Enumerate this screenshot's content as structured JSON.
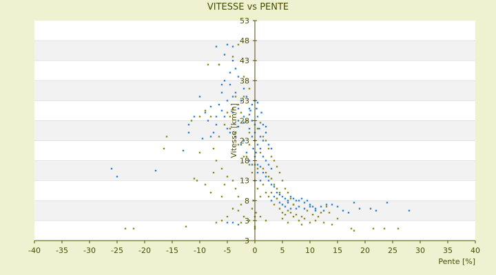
{
  "chart_data": {
    "type": "scatter",
    "title": "VITESSE vs PENTE",
    "xlabel": "Pente [%]",
    "ylabel": "Vitesse [km/h]",
    "xlim": [
      -40,
      40
    ],
    "ylim": [
      -2,
      53
    ],
    "x_ticks": [
      "-40",
      "-35",
      "-30",
      "-25",
      "-20",
      "-15",
      "-10",
      "-5",
      "0",
      "5",
      "10",
      "15",
      "20",
      "25",
      "30",
      "35",
      "40"
    ],
    "y_ticks": [
      "3",
      "3",
      "8",
      "13",
      "18",
      "23",
      "28",
      "33",
      "38",
      "43",
      "48",
      "53"
    ],
    "grid": "horizontal",
    "legend": "none",
    "colors": {
      "background": "#eef2d0",
      "plot": "#ffffff",
      "band": "#f2f2f2",
      "series_blue": "#2b7fd6",
      "series_olive": "#8a8a1a",
      "axis": "#4a4a00"
    },
    "series": [
      {
        "color": "blue",
        "points": [
          [
            -26,
            16
          ],
          [
            -25,
            14
          ],
          [
            -18,
            15.5
          ],
          [
            -13,
            20.5
          ],
          [
            -12,
            27
          ],
          [
            -10,
            34
          ],
          [
            -9,
            30
          ],
          [
            -8,
            31.5
          ],
          [
            -7,
            46.5
          ],
          [
            -6,
            35
          ],
          [
            -5,
            47
          ],
          [
            -4,
            43
          ],
          [
            -5.5,
            38
          ],
          [
            -4.5,
            37
          ],
          [
            -3.5,
            35
          ],
          [
            -3,
            31
          ],
          [
            -2.5,
            33
          ],
          [
            -2,
            29
          ],
          [
            -1.5,
            34
          ],
          [
            -1,
            31
          ],
          [
            -0.5,
            32
          ],
          [
            -0.5,
            28
          ],
          [
            0,
            27
          ],
          [
            0.3,
            31
          ],
          [
            0.5,
            29
          ],
          [
            0.8,
            26
          ],
          [
            1,
            24
          ],
          [
            1.2,
            30
          ],
          [
            1.5,
            23
          ],
          [
            2,
            25
          ],
          [
            2.5,
            22
          ],
          [
            3,
            21
          ],
          [
            0.5,
            22
          ],
          [
            -0.5,
            24
          ],
          [
            0,
            25
          ],
          [
            0.2,
            20
          ],
          [
            -0.3,
            21
          ],
          [
            1,
            21
          ],
          [
            -1,
            26
          ],
          [
            -2,
            23
          ],
          [
            -3,
            28
          ],
          [
            -4,
            30
          ],
          [
            -5.5,
            29
          ],
          [
            -6,
            30.5
          ],
          [
            -6.5,
            32
          ],
          [
            -7,
            27
          ],
          [
            -7.5,
            25
          ],
          [
            -8,
            24
          ],
          [
            -3.5,
            24
          ],
          [
            -2.5,
            22
          ],
          [
            -1.5,
            20
          ],
          [
            -1,
            18
          ],
          [
            0.5,
            17
          ],
          [
            1,
            16.5
          ],
          [
            1.5,
            15
          ],
          [
            2,
            14
          ],
          [
            2.5,
            13
          ],
          [
            3,
            12
          ],
          [
            3.5,
            11.5
          ],
          [
            4,
            10
          ],
          [
            4.5,
            9.5
          ],
          [
            5,
            9
          ],
          [
            5.5,
            8.5
          ],
          [
            6,
            8
          ],
          [
            6.5,
            9
          ],
          [
            7,
            8.5
          ],
          [
            7.5,
            8
          ],
          [
            8,
            8
          ],
          [
            8.5,
            8.5
          ],
          [
            9,
            7.5
          ],
          [
            9.5,
            8
          ],
          [
            10,
            7
          ],
          [
            10.5,
            6.5
          ],
          [
            11,
            6
          ],
          [
            12,
            6.5
          ],
          [
            12.5,
            5.5
          ],
          [
            13,
            7
          ],
          [
            14,
            7
          ],
          [
            15,
            6.5
          ],
          [
            16,
            5.5
          ],
          [
            17,
            5
          ],
          [
            18,
            7.5
          ],
          [
            19,
            6
          ],
          [
            21,
            6
          ],
          [
            22,
            5.5
          ],
          [
            24,
            7.5
          ],
          [
            28,
            5.5
          ],
          [
            3,
            8
          ],
          [
            4,
            8.5
          ],
          [
            5,
            7
          ],
          [
            5.5,
            6.5
          ],
          [
            6,
            7.5
          ],
          [
            7,
            7
          ],
          [
            8,
            6.5
          ],
          [
            3.5,
            9
          ],
          [
            4.5,
            7.5
          ],
          [
            6.5,
            6
          ],
          [
            7.5,
            6
          ],
          [
            9,
            6
          ],
          [
            10,
            6.5
          ],
          [
            11,
            5.5
          ],
          [
            2,
            18
          ],
          [
            2.5,
            17
          ],
          [
            3,
            16
          ],
          [
            1.5,
            19
          ],
          [
            0,
            19
          ],
          [
            -0.5,
            17
          ],
          [
            0.5,
            15
          ],
          [
            1,
            13
          ],
          [
            -5,
            26
          ],
          [
            -4.5,
            25
          ],
          [
            -3,
            26.5
          ],
          [
            -2,
            27.5
          ],
          [
            -1,
            29.5
          ],
          [
            0,
            33
          ],
          [
            0.5,
            32.5
          ],
          [
            -0.8,
            30.5
          ],
          [
            1.5,
            27
          ],
          [
            2,
            26.5
          ],
          [
            -5,
            33
          ],
          [
            -4,
            34
          ],
          [
            -6,
            37
          ],
          [
            -4.5,
            40
          ],
          [
            -3.5,
            41
          ],
          [
            -3,
            39
          ],
          [
            -2,
            36
          ],
          [
            -6.5,
            42
          ],
          [
            -5.5,
            44.5
          ],
          [
            -4,
            46.5
          ],
          [
            -7,
            29
          ],
          [
            -8.5,
            28
          ],
          [
            -9.5,
            23.5
          ],
          [
            -11,
            29
          ],
          [
            -12,
            25
          ],
          [
            -3,
            2
          ],
          [
            -4,
            2.5
          ],
          [
            -5,
            2.5
          ]
        ]
      },
      {
        "color": "olive",
        "points": [
          [
            -23.5,
            1
          ],
          [
            -22,
            1
          ],
          [
            -16,
            24
          ],
          [
            -16.5,
            21
          ],
          [
            -12.5,
            1.5
          ],
          [
            -11,
            13.5
          ],
          [
            -10.5,
            13
          ],
          [
            -10,
            29
          ],
          [
            -9,
            30.5
          ],
          [
            -8,
            29
          ],
          [
            -8.5,
            42
          ],
          [
            -6.5,
            42
          ],
          [
            -5,
            30
          ],
          [
            -4.5,
            26
          ],
          [
            -4,
            31
          ],
          [
            -3.5,
            25
          ],
          [
            -3,
            22
          ],
          [
            -2,
            19
          ],
          [
            -1.5,
            19
          ],
          [
            -1,
            22
          ],
          [
            -1,
            17
          ],
          [
            -0.5,
            15
          ],
          [
            0,
            13
          ],
          [
            0.5,
            11
          ],
          [
            1,
            9
          ],
          [
            1.5,
            12
          ],
          [
            2,
            10
          ],
          [
            2.5,
            9
          ],
          [
            3,
            10
          ],
          [
            3.5,
            7
          ],
          [
            4,
            8.5
          ],
          [
            4.5,
            6
          ],
          [
            5,
            5
          ],
          [
            5.5,
            4.5
          ],
          [
            6,
            5.5
          ],
          [
            6.5,
            5
          ],
          [
            7,
            4
          ],
          [
            7.5,
            4.5
          ],
          [
            8,
            3
          ],
          [
            8.5,
            4
          ],
          [
            9,
            3.5
          ],
          [
            10,
            2.5
          ],
          [
            10.5,
            4.5
          ],
          [
            11,
            3
          ],
          [
            12,
            5
          ],
          [
            13,
            6.5
          ],
          [
            14,
            2
          ],
          [
            15,
            3.5
          ],
          [
            17.5,
            1
          ],
          [
            18,
            0.5
          ],
          [
            21.5,
            1
          ],
          [
            23.5,
            1
          ],
          [
            26,
            1
          ],
          [
            0,
            17
          ],
          [
            0.5,
            16
          ],
          [
            1,
            20
          ],
          [
            1.5,
            16
          ],
          [
            2,
            15
          ],
          [
            2.5,
            14
          ],
          [
            3,
            13.5
          ],
          [
            3.5,
            12
          ],
          [
            4,
            11
          ],
          [
            4.5,
            10
          ],
          [
            -0.5,
            6
          ],
          [
            0,
            4
          ],
          [
            0,
            1
          ],
          [
            0,
            1.5
          ],
          [
            -0.3,
            8
          ],
          [
            0.2,
            5
          ],
          [
            1,
            4
          ],
          [
            2,
            3
          ],
          [
            -1,
            3
          ],
          [
            -2,
            4
          ],
          [
            -2.5,
            7
          ],
          [
            -3,
            9
          ],
          [
            -3.5,
            11
          ],
          [
            -4,
            13
          ],
          [
            -5,
            14
          ],
          [
            -5.5,
            12
          ],
          [
            -6,
            9
          ],
          [
            -7,
            2.5
          ],
          [
            -8,
            10
          ],
          [
            -6,
            16
          ],
          [
            -7,
            18
          ],
          [
            -7.5,
            21
          ],
          [
            -6.5,
            24
          ],
          [
            -5.5,
            27
          ],
          [
            -4.5,
            29
          ],
          [
            -3,
            32
          ],
          [
            -2,
            34
          ],
          [
            -2.5,
            30
          ],
          [
            -1.5,
            28
          ],
          [
            -1,
            25
          ],
          [
            0,
            23
          ],
          [
            0.5,
            26
          ],
          [
            1,
            27.5
          ],
          [
            1.5,
            24
          ],
          [
            2,
            23
          ],
          [
            2.5,
            21
          ],
          [
            3,
            19
          ],
          [
            3.5,
            18
          ],
          [
            4,
            16.5
          ],
          [
            4.5,
            15
          ],
          [
            5,
            13
          ],
          [
            5.5,
            11
          ],
          [
            6,
            10
          ],
          [
            6.5,
            8.5
          ],
          [
            7,
            7
          ],
          [
            -3,
            47
          ],
          [
            -4,
            44
          ],
          [
            -1,
            36
          ],
          [
            -2,
            39
          ],
          [
            -3.5,
            34
          ],
          [
            -7.5,
            15
          ],
          [
            -9,
            12
          ],
          [
            -10,
            20
          ],
          [
            -11.5,
            28
          ],
          [
            -4,
            6
          ],
          [
            -3,
            5.5
          ],
          [
            -2.5,
            2.5
          ],
          [
            -6,
            3
          ],
          [
            -5,
            4
          ],
          [
            5,
            3.5
          ],
          [
            6,
            2.5
          ],
          [
            8.5,
            2
          ],
          [
            9.5,
            5.5
          ],
          [
            11.5,
            4
          ],
          [
            12.5,
            2.5
          ],
          [
            13.5,
            5
          ]
        ]
      }
    ]
  }
}
